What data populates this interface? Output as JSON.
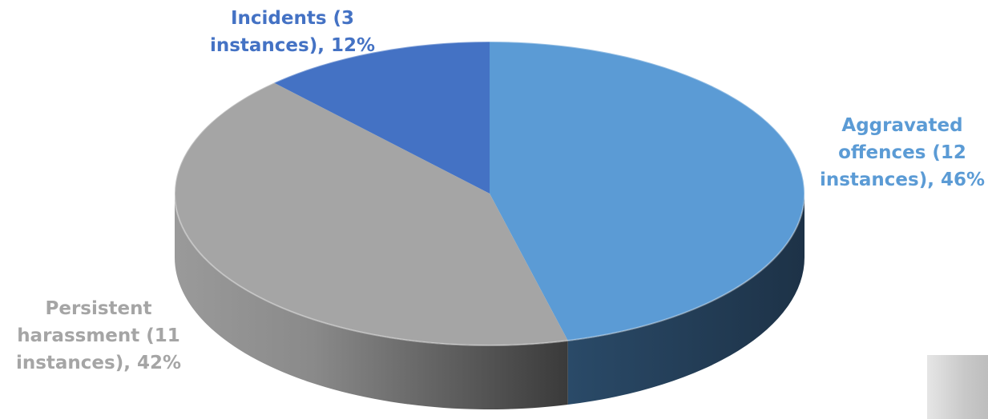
{
  "chart_data": {
    "type": "pie",
    "title": "",
    "style": "3d",
    "slices": [
      {
        "label": "Aggravated offences (12 instances), 46%",
        "display": "Aggravated\noffences (12\ninstances), 46%",
        "count": 12,
        "percent": 46,
        "color": "#5b9bd5",
        "side_color": "#223c55",
        "label_color": "#5b9bd5"
      },
      {
        "label": "Persistent harassment (11 instances), 42%",
        "display": "Persistent\nharassment (11\ninstances), 42%",
        "count": 11,
        "percent": 42,
        "color": "#a5a5a5",
        "side_color": "#7a7a7a",
        "label_color": "#a5a5a5"
      },
      {
        "label": "Incidents (3 instances), 12%",
        "display": "Incidents (3\ninstances), 12%",
        "count": 3,
        "percent": 12,
        "color": "#4472c4",
        "side_color": "#2f5597",
        "label_color": "#4472c4"
      }
    ]
  }
}
